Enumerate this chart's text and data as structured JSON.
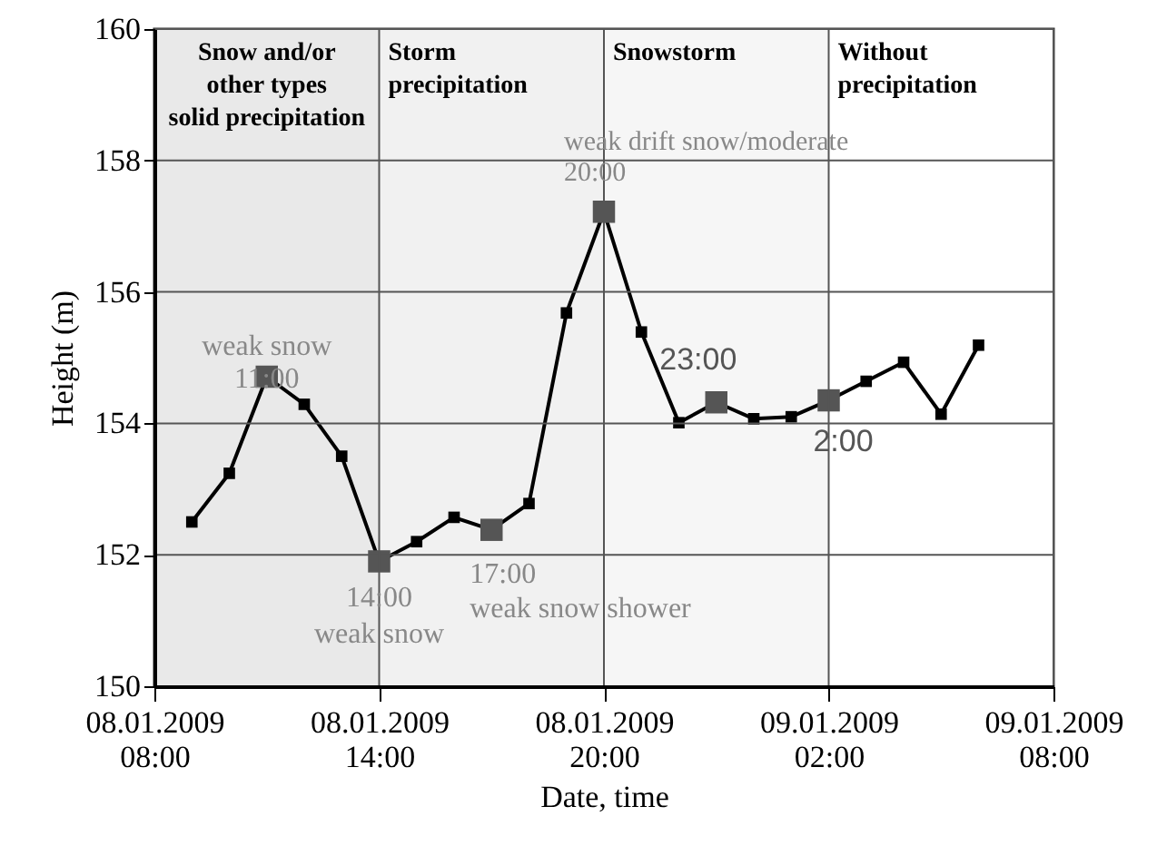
{
  "chart_data": {
    "type": "line",
    "xlabel": "Date, time",
    "ylabel": "Height (m)",
    "x": [
      "2009-01-08T09:00",
      "2009-01-08T10:00",
      "2009-01-08T11:00",
      "2009-01-08T12:00",
      "2009-01-08T13:00",
      "2009-01-08T14:00",
      "2009-01-08T15:00",
      "2009-01-08T16:00",
      "2009-01-08T17:00",
      "2009-01-08T18:00",
      "2009-01-08T19:00",
      "2009-01-08T20:00",
      "2009-01-08T21:00",
      "2009-01-08T22:00",
      "2009-01-08T23:00",
      "2009-01-09T00:00",
      "2009-01-09T01:00",
      "2009-01-09T02:00",
      "2009-01-09T03:00",
      "2009-01-09T04:00",
      "2009-01-09T05:00",
      "2009-01-09T06:00"
    ],
    "series": [
      {
        "color": "#000000",
        "values": [
          152.5,
          153.24,
          154.71,
          154.29,
          153.5,
          151.9,
          152.2,
          152.57,
          152.38,
          152.78,
          155.68,
          157.22,
          155.39,
          154.01,
          154.32,
          154.07,
          154.1,
          154.35,
          154.64,
          154.93,
          154.14,
          155.19
        ]
      }
    ],
    "marker": "square",
    "grid": true,
    "xlim": [
      "2009-01-08T08:00",
      "2009-01-09T08:00"
    ],
    "xticks": [
      {
        "value": "2009-01-08T08:00",
        "label": "08.01.2009\n08:00"
      },
      {
        "value": "2009-01-08T14:00",
        "label": "08.01.2009\n14:00"
      },
      {
        "value": "2009-01-08T20:00",
        "label": "08.01.2009\n20:00"
      },
      {
        "value": "2009-01-09T02:00",
        "label": "09.01.2009\n02:00"
      },
      {
        "value": "2009-01-09T08:00",
        "label": "09.01.2009\n08:00"
      }
    ],
    "ylim": [
      150,
      160
    ],
    "yticks": [
      150,
      152,
      154,
      156,
      158,
      160
    ],
    "bands": [
      {
        "axis": "x",
        "from": "2009-01-08T08:00",
        "to": "2009-01-08T14:00",
        "label": "Snow and/or\nother types\nsolid precipitation",
        "color": "#e9e9e9"
      },
      {
        "axis": "x",
        "from": "2009-01-08T14:00",
        "to": "2009-01-08T20:00",
        "label": "Storm\nprecipitation",
        "color": "#f1f1f1"
      },
      {
        "axis": "x",
        "from": "2009-01-08T20:00",
        "to": "2009-01-09T02:00",
        "label": "Snowstorm",
        "color": "#f6f6f6"
      },
      {
        "axis": "x",
        "from": "2009-01-09T02:00",
        "to": "2009-01-09T08:00",
        "label": "Without\nprecipitation",
        "color": "#ffffff"
      }
    ],
    "annotations": [
      {
        "text": "weak snow\n11:00",
        "x": "2009-01-08T11:00",
        "y": 154.71
      },
      {
        "text": "14:00\nweak snow",
        "x": "2009-01-08T14:00",
        "y": 151.9
      },
      {
        "text": "17:00\nweak snow shower",
        "x": "2009-01-08T17:00",
        "y": 152.38
      },
      {
        "text": "weak drift snow/moderate\n20:00",
        "x": "2009-01-08T20:00",
        "y": 157.22
      },
      {
        "text": "23:00",
        "x": "2009-01-08T23:00",
        "y": 154.32
      },
      {
        "text": "2:00",
        "x": "2009-01-09T02:00",
        "y": 154.35
      }
    ]
  }
}
